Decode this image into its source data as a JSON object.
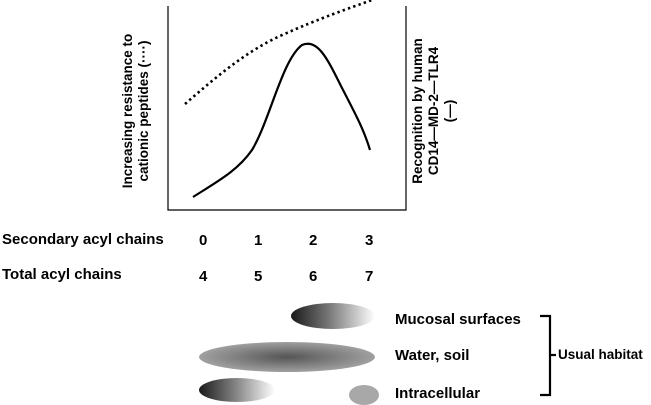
{
  "y_left_label": "Increasing resistance to\ncationic peptides (····)",
  "y_right_label": "Recognition by human\nCD14—MD-2—TLR4\n(—)",
  "rows": {
    "secondary": {
      "label": "Secondary acyl chains",
      "values": [
        "0",
        "1",
        "2",
        "3"
      ]
    },
    "total": {
      "label": "Total acyl chains",
      "values": [
        "4",
        "5",
        "6",
        "7"
      ]
    }
  },
  "habitats": {
    "mucosal": "Mucosal surfaces",
    "water_soil": "Water, soil",
    "intracellular": "Intracellular",
    "bracket_label": "Usual habitat"
  },
  "chart_data": {
    "type": "line",
    "x": [
      0,
      1,
      2,
      3
    ],
    "series": [
      {
        "style": "dotted",
        "values": [
          0.55,
          0.75,
          0.88,
          0.97
        ]
      },
      {
        "style": "solid",
        "values": [
          0.07,
          0.3,
          0.9,
          0.32
        ]
      }
    ],
    "colors": {
      "ink": "#000000",
      "blob_dark": "#1a1a1a",
      "blob_light": "#ffffff",
      "water_center": "#555555",
      "water_edge": "#999999",
      "intracellular_fill": "#a8a8a8"
    }
  }
}
